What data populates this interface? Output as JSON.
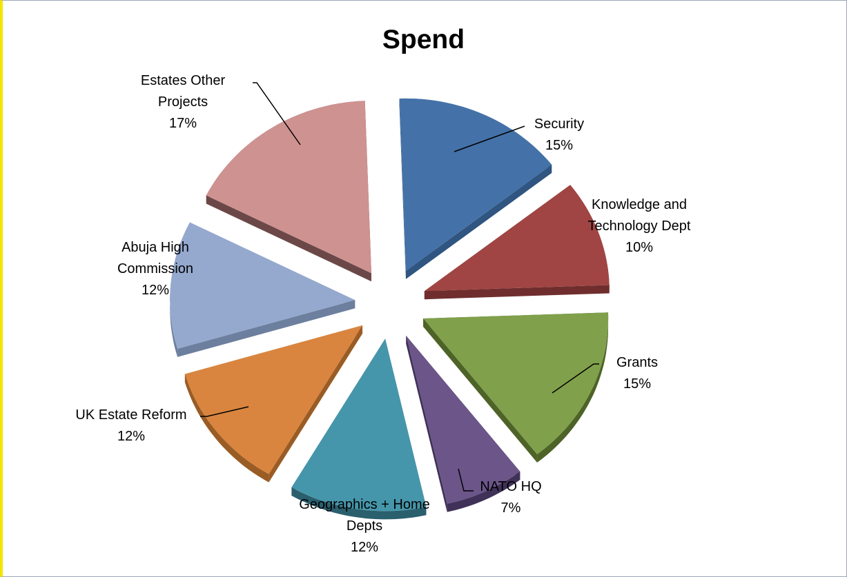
{
  "chart_data": {
    "type": "pie",
    "title": "Spend",
    "exploded": true,
    "three_d": true,
    "slices": [
      {
        "label": "Security",
        "label_lines": [
          "Security"
        ],
        "value": 15,
        "pct_label": "15%",
        "color": "#4472a8",
        "side": "#2f5580"
      },
      {
        "label": "Knowledge and Technology Dept",
        "label_lines": [
          "Knowledge and",
          "Technology Dept"
        ],
        "value": 10,
        "pct_label": "10%",
        "color": "#a04543",
        "side": "#6f2e2d"
      },
      {
        "label": "Grants",
        "label_lines": [
          "Grants"
        ],
        "value": 15,
        "pct_label": "15%",
        "color": "#80a04b",
        "side": "#4d6327"
      },
      {
        "label": "NATO HQ",
        "label_lines": [
          "NATO HQ"
        ],
        "value": 7,
        "pct_label": "7%",
        "color": "#6b5589",
        "side": "#3f3157"
      },
      {
        "label": "Geographics + Home Depts",
        "label_lines": [
          "Geographics + Home",
          "Depts"
        ],
        "value": 12,
        "pct_label": "12%",
        "color": "#4596ab",
        "side": "#2a5f6e"
      },
      {
        "label": "UK Estate Reform",
        "label_lines": [
          "UK Estate Reform"
        ],
        "value": 12,
        "pct_label": "12%",
        "color": "#d9853f",
        "side": "#9a5c25"
      },
      {
        "label": "Abuja High Commission",
        "label_lines": [
          "Abuja High",
          "Commission"
        ],
        "value": 12,
        "pct_label": "12%",
        "color": "#95a9cf",
        "side": "#6d7f9e"
      },
      {
        "label": "Estates Other Projects",
        "label_lines": [
          "Estates Other",
          "Projects"
        ],
        "value": 17,
        "pct_label": "17%",
        "color": "#ce9291",
        "side": "#6b4847"
      }
    ]
  }
}
